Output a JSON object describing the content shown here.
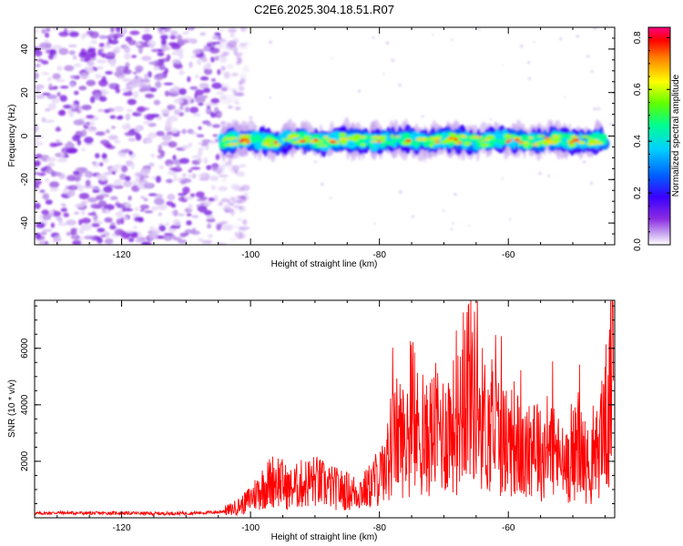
{
  "chart_data": [
    {
      "type": "heatmap",
      "title": "C2E6.2025.304.18.51.R07",
      "xlabel": "Height of straight line (km)",
      "ylabel": "Frequency (Hz)",
      "xlim": [
        -133.5,
        -43.5
      ],
      "ylim": [
        -50,
        50
      ],
      "xticks": [
        "-120",
        "-100",
        "-80",
        "-60"
      ],
      "xtick_values": [
        -120,
        -100,
        -80,
        -60
      ],
      "yticks": [
        "40",
        "20",
        "0",
        "-20",
        "-40"
      ],
      "ytick_values": [
        40,
        20,
        0,
        -20,
        -40
      ],
      "colorbar": {
        "label": "Normalized spectral amplitude",
        "range": [
          0.0,
          0.84
        ],
        "ticks": [
          "0.8",
          "0.6",
          "0.4",
          "0.2",
          "0.0"
        ],
        "tick_values": [
          0.8,
          0.6,
          0.4,
          0.2,
          0.0
        ],
        "colors": [
          "#ffffff",
          "#c9a8f0",
          "#8b2be2",
          "#3a00ff",
          "#0060ff",
          "#00d0ff",
          "#00ff90",
          "#60ff00",
          "#ffff00",
          "#ff8000",
          "#ff0000",
          "#ff0080"
        ]
      },
      "features": {
        "noise_region_x": [
          -133.5,
          -102
        ],
        "signal_band_x": [
          -104.5,
          -45
        ],
        "signal_band_center_hz": -2,
        "signal_band_halfwidth_hz": 5,
        "peak_amplitude": 0.84
      }
    },
    {
      "type": "line",
      "title": "",
      "xlabel": "Height of straight line (km)",
      "ylabel": "SNR (10 * v/v)",
      "xlim": [
        -133.5,
        -43.5
      ],
      "ylim": [
        0,
        7700
      ],
      "xticks": [
        "-120",
        "-100",
        "-80",
        "-60"
      ],
      "xtick_values": [
        -120,
        -100,
        -80,
        -60
      ],
      "yticks": [
        "6000",
        "4000",
        "2000"
      ],
      "ytick_values": [
        6000,
        4000,
        2000
      ],
      "line_color": "#ff0000",
      "series": [
        {
          "name": "SNR",
          "x": [
            -133.5,
            -130,
            -125,
            -120,
            -115,
            -110,
            -105,
            -103,
            -101,
            -100,
            -98,
            -96,
            -94,
            -92,
            -90,
            -88,
            -86,
            -84,
            -82,
            -80,
            -79,
            -78,
            -77,
            -76,
            -75,
            -74,
            -73,
            -72,
            -71,
            -70,
            -69,
            -68,
            -67,
            -66,
            -65,
            -64,
            -63,
            -62,
            -61,
            -60,
            -59,
            -58,
            -57,
            -56,
            -55,
            -54,
            -53,
            -52,
            -51,
            -50,
            -49,
            -48,
            -47,
            -46,
            -45,
            -44.5,
            -44,
            -43.7
          ],
          "y": [
            150,
            180,
            160,
            170,
            150,
            160,
            200,
            300,
            500,
            700,
            1100,
            1400,
            1000,
            1200,
            1300,
            1100,
            1000,
            900,
            1000,
            1500,
            1700,
            2600,
            3000,
            2600,
            2700,
            3100,
            2600,
            3000,
            3200,
            3000,
            3300,
            3200,
            4500,
            5000,
            4100,
            3500,
            3000,
            3200,
            2800,
            2600,
            2900,
            2200,
            2000,
            3100,
            2200,
            2500,
            2500,
            2000,
            1800,
            2200,
            2500,
            2000,
            1500,
            2500,
            3800,
            3000,
            5000,
            7500
          ]
        }
      ]
    }
  ]
}
